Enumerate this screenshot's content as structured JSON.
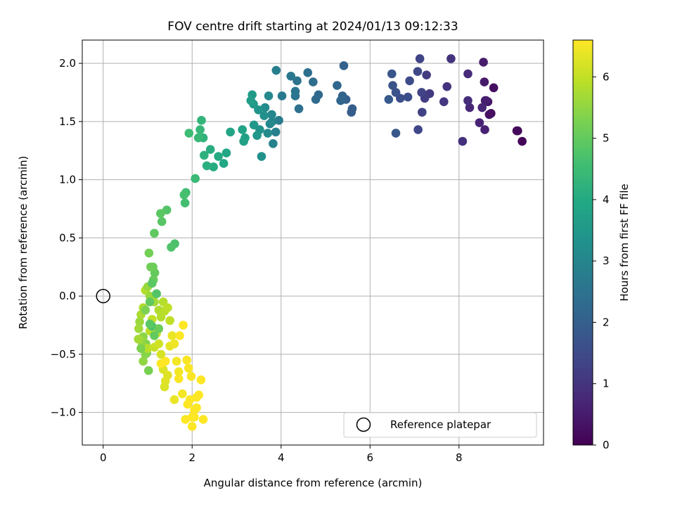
{
  "chart_data": {
    "type": "scatter",
    "title": "FOV centre drift starting at 2024/01/13 09:12:33",
    "xlabel": "Angular distance from reference (arcmin)",
    "ylabel": "Rotation from reference (arcmin)",
    "xlim": [
      -0.47,
      9.9
    ],
    "ylim": [
      -1.28,
      2.2
    ],
    "xticks": [
      0,
      2,
      4,
      6,
      8
    ],
    "yticks": [
      -1.0,
      -0.5,
      0.0,
      0.5,
      1.0,
      1.5,
      2.0
    ],
    "xtick_labels": [
      "0",
      "2",
      "4",
      "6",
      "8"
    ],
    "ytick_labels": [
      "−1.0",
      "−0.5",
      "0.0",
      "0.5",
      "1.0",
      "1.5",
      "2.0"
    ],
    "grid": true,
    "colormap": "viridis",
    "colorbar": {
      "label": "Hours from first FF file",
      "range": [
        0,
        6.6
      ],
      "ticks": [
        0,
        1,
        2,
        3,
        4,
        5,
        6
      ],
      "tick_labels": [
        "0",
        "1",
        "2",
        "3",
        "4",
        "5",
        "6"
      ]
    },
    "reference_point": {
      "x": 0,
      "y": 0,
      "marker": "open-circle"
    },
    "legend": {
      "position": "bottom-right",
      "entries": [
        "Reference platepar"
      ]
    },
    "series": [
      {
        "points": [
          [
            9.42,
            1.33,
            0.05
          ],
          [
            9.32,
            1.42,
            0.1
          ],
          [
            9.3,
            1.42,
            0.15
          ],
          [
            8.72,
            1.57,
            0.2
          ],
          [
            8.78,
            1.79,
            0.25
          ],
          [
            8.68,
            1.56,
            0.3
          ],
          [
            8.65,
            1.67,
            0.35
          ],
          [
            8.59,
            1.68,
            0.4
          ],
          [
            8.57,
            1.84,
            0.45
          ],
          [
            8.55,
            2.01,
            0.5
          ],
          [
            8.61,
            1.68,
            0.55
          ],
          [
            8.58,
            1.43,
            0.6
          ],
          [
            8.46,
            1.49,
            0.65
          ],
          [
            8.52,
            1.62,
            0.7
          ],
          [
            8.24,
            1.62,
            0.75
          ],
          [
            8.2,
            1.91,
            0.8
          ],
          [
            8.2,
            1.68,
            0.85
          ],
          [
            8.08,
            1.33,
            0.9
          ],
          [
            7.82,
            2.04,
            0.95
          ],
          [
            7.73,
            1.8,
            1.0
          ],
          [
            7.66,
            1.67,
            1.05
          ],
          [
            7.34,
            1.74,
            1.1
          ],
          [
            7.27,
            1.9,
            1.15
          ],
          [
            7.23,
            1.7,
            1.2
          ],
          [
            7.17,
            1.58,
            1.25
          ],
          [
            7.16,
            1.75,
            1.3
          ],
          [
            7.12,
            2.04,
            1.35
          ],
          [
            7.08,
            1.43,
            1.4
          ],
          [
            7.07,
            1.93,
            1.45
          ],
          [
            6.89,
            1.85,
            1.5
          ],
          [
            6.85,
            1.71,
            1.55
          ],
          [
            6.68,
            1.7,
            1.6
          ],
          [
            6.58,
            1.75,
            1.65
          ],
          [
            6.51,
            1.81,
            1.7
          ],
          [
            6.49,
            1.91,
            1.75
          ],
          [
            6.58,
            1.4,
            1.8
          ],
          [
            6.42,
            1.69,
            1.85
          ],
          [
            5.6,
            1.61,
            1.9
          ],
          [
            5.58,
            1.58,
            1.95
          ],
          [
            5.46,
            1.69,
            2.0
          ],
          [
            5.41,
            1.98,
            2.05
          ],
          [
            5.38,
            1.72,
            2.1
          ],
          [
            5.34,
            1.68,
            2.15
          ],
          [
            5.26,
            1.81,
            2.2
          ],
          [
            4.84,
            1.73,
            2.25
          ],
          [
            4.78,
            1.69,
            2.3
          ],
          [
            4.72,
            1.84,
            2.35
          ],
          [
            4.6,
            1.92,
            2.4
          ],
          [
            4.4,
            1.61,
            2.45
          ],
          [
            4.36,
            1.85,
            2.5
          ],
          [
            4.32,
            1.72,
            2.55
          ],
          [
            4.32,
            1.76,
            2.6
          ],
          [
            4.22,
            1.89,
            2.65
          ],
          [
            4.02,
            1.72,
            2.7
          ],
          [
            3.95,
            1.51,
            2.75
          ],
          [
            3.89,
            1.94,
            2.8
          ],
          [
            3.88,
            1.41,
            2.85
          ],
          [
            3.82,
            1.31,
            2.9
          ],
          [
            3.8,
            1.5,
            2.95
          ],
          [
            3.79,
            1.56,
            3.0
          ],
          [
            3.75,
            1.48,
            3.05
          ],
          [
            3.72,
            1.72,
            3.1
          ],
          [
            3.7,
            1.4,
            3.15
          ],
          [
            3.64,
            1.62,
            3.2
          ],
          [
            3.62,
            1.55,
            3.25
          ],
          [
            3.56,
            1.2,
            3.3
          ],
          [
            3.52,
            1.43,
            3.35
          ],
          [
            3.49,
            1.6,
            3.4
          ],
          [
            3.46,
            1.38,
            3.45
          ],
          [
            3.39,
            1.47,
            3.5
          ],
          [
            3.38,
            1.65,
            3.55
          ],
          [
            3.35,
            1.73,
            3.6
          ],
          [
            3.32,
            1.68,
            3.65
          ],
          [
            3.19,
            1.36,
            3.7
          ],
          [
            3.16,
            1.33,
            3.75
          ],
          [
            3.13,
            1.43,
            3.8
          ],
          [
            2.86,
            1.41,
            3.85
          ],
          [
            2.77,
            1.23,
            3.9
          ],
          [
            2.71,
            1.14,
            3.95
          ],
          [
            2.59,
            1.2,
            4.0
          ],
          [
            2.48,
            1.11,
            4.05
          ],
          [
            2.41,
            1.26,
            4.1
          ],
          [
            2.33,
            1.12,
            4.15
          ],
          [
            2.27,
            1.21,
            4.2
          ],
          [
            2.25,
            1.36,
            4.25
          ],
          [
            2.21,
            1.51,
            4.3
          ],
          [
            2.18,
            1.43,
            4.35
          ],
          [
            2.14,
            1.36,
            4.4
          ],
          [
            2.07,
            1.01,
            4.45
          ],
          [
            1.93,
            1.4,
            4.5
          ],
          [
            1.86,
            0.89,
            4.55
          ],
          [
            1.84,
            0.8,
            4.6
          ],
          [
            1.82,
            0.87,
            4.65
          ],
          [
            1.61,
            0.45,
            4.7
          ],
          [
            1.53,
            0.42,
            4.75
          ],
          [
            1.43,
            0.74,
            4.8
          ],
          [
            1.32,
            0.64,
            4.85
          ],
          [
            1.29,
            0.71,
            4.9
          ],
          [
            1.15,
            0.54,
            4.95
          ],
          [
            1.16,
            0.2,
            5.0
          ],
          [
            1.13,
            0.14,
            5.05
          ],
          [
            1.12,
            0.25,
            5.1
          ],
          [
            1.07,
            0.25,
            5.15
          ],
          [
            1.03,
            0.37,
            5.2
          ],
          [
            1.02,
            -0.64,
            5.25
          ],
          [
            0.98,
            -0.49,
            5.3
          ],
          [
            0.96,
            -0.41,
            5.35
          ],
          [
            0.95,
            -0.5,
            5.4
          ],
          [
            0.9,
            -0.35,
            5.45
          ],
          [
            0.88,
            -0.42,
            5.5
          ],
          [
            0.85,
            -0.38,
            5.55
          ],
          [
            0.82,
            -0.22,
            5.6
          ],
          [
            0.8,
            -0.28,
            5.65
          ],
          [
            0.79,
            -0.37,
            5.7
          ],
          [
            0.85,
            -0.16,
            5.75
          ],
          [
            0.9,
            -0.1,
            5.8
          ],
          [
            0.95,
            0.05,
            5.85
          ],
          [
            1.0,
            -0.45,
            5.9
          ],
          [
            1.05,
            -0.3,
            5.95
          ],
          [
            1.1,
            -0.2,
            6.0
          ],
          [
            1.15,
            -0.44,
            6.05
          ],
          [
            1.2,
            -0.32,
            6.1
          ],
          [
            1.25,
            -0.41,
            6.15
          ],
          [
            1.3,
            -0.5,
            6.2
          ],
          [
            1.35,
            -0.63,
            6.25
          ],
          [
            1.4,
            -0.73,
            6.3
          ],
          [
            1.5,
            -0.43,
            6.35
          ],
          [
            1.55,
            -0.34,
            6.4
          ],
          [
            1.6,
            -0.41,
            6.45
          ],
          [
            1.65,
            -0.56,
            6.5
          ],
          [
            1.7,
            -0.71,
            6.55
          ],
          [
            1.72,
            -0.34,
            6.58
          ],
          [
            1.8,
            -0.25,
            6.6
          ],
          [
            1.9,
            -0.93,
            6.6
          ],
          [
            1.95,
            -0.89,
            6.6
          ],
          [
            2.0,
            -1.04,
            6.6
          ],
          [
            2.05,
            -0.98,
            6.6
          ],
          [
            2.1,
            -0.87,
            6.6
          ],
          [
            2.15,
            -0.85,
            6.6
          ],
          [
            2.2,
            -0.72,
            6.6
          ],
          [
            2.25,
            -1.06,
            6.6
          ],
          [
            1.85,
            -1.06,
            6.6
          ],
          [
            2.0,
            -1.12,
            6.6
          ],
          [
            2.05,
            -1.04,
            6.6
          ],
          [
            2.1,
            -0.96,
            6.6
          ],
          [
            1.4,
            -0.56,
            6.6
          ],
          [
            1.3,
            -0.58,
            6.6
          ],
          [
            1.45,
            -0.68,
            6.3
          ],
          [
            1.38,
            -0.78,
            6.25
          ],
          [
            1.6,
            -0.89,
            6.4
          ],
          [
            1.7,
            -0.65,
            6.5
          ],
          [
            1.88,
            -0.55,
            6.55
          ],
          [
            1.92,
            -0.62,
            6.55
          ],
          [
            1.98,
            -0.69,
            6.55
          ],
          [
            1.78,
            -0.84,
            6.5
          ],
          [
            1.0,
            0.08,
            5.6
          ],
          [
            1.05,
            0.0,
            5.6
          ],
          [
            1.15,
            -0.05,
            5.7
          ],
          [
            1.2,
            0.02,
            5.7
          ],
          [
            1.25,
            -0.12,
            5.8
          ],
          [
            1.3,
            -0.18,
            5.85
          ],
          [
            1.35,
            -0.05,
            5.85
          ],
          [
            1.38,
            -0.13,
            5.9
          ],
          [
            1.45,
            -0.1,
            5.95
          ],
          [
            1.5,
            -0.21,
            5.95
          ],
          [
            0.9,
            -0.56,
            5.5
          ],
          [
            0.85,
            -0.45,
            5.3
          ],
          [
            0.95,
            -0.12,
            5.3
          ],
          [
            1.05,
            -0.05,
            5.0
          ],
          [
            1.1,
            0.11,
            4.9
          ],
          [
            1.2,
            0.02,
            4.8
          ],
          [
            1.1,
            -0.26,
            4.7
          ],
          [
            1.05,
            -0.24,
            4.9
          ],
          [
            1.15,
            -0.34,
            5.0
          ],
          [
            1.25,
            -0.28,
            5.1
          ]
        ]
      }
    ]
  }
}
